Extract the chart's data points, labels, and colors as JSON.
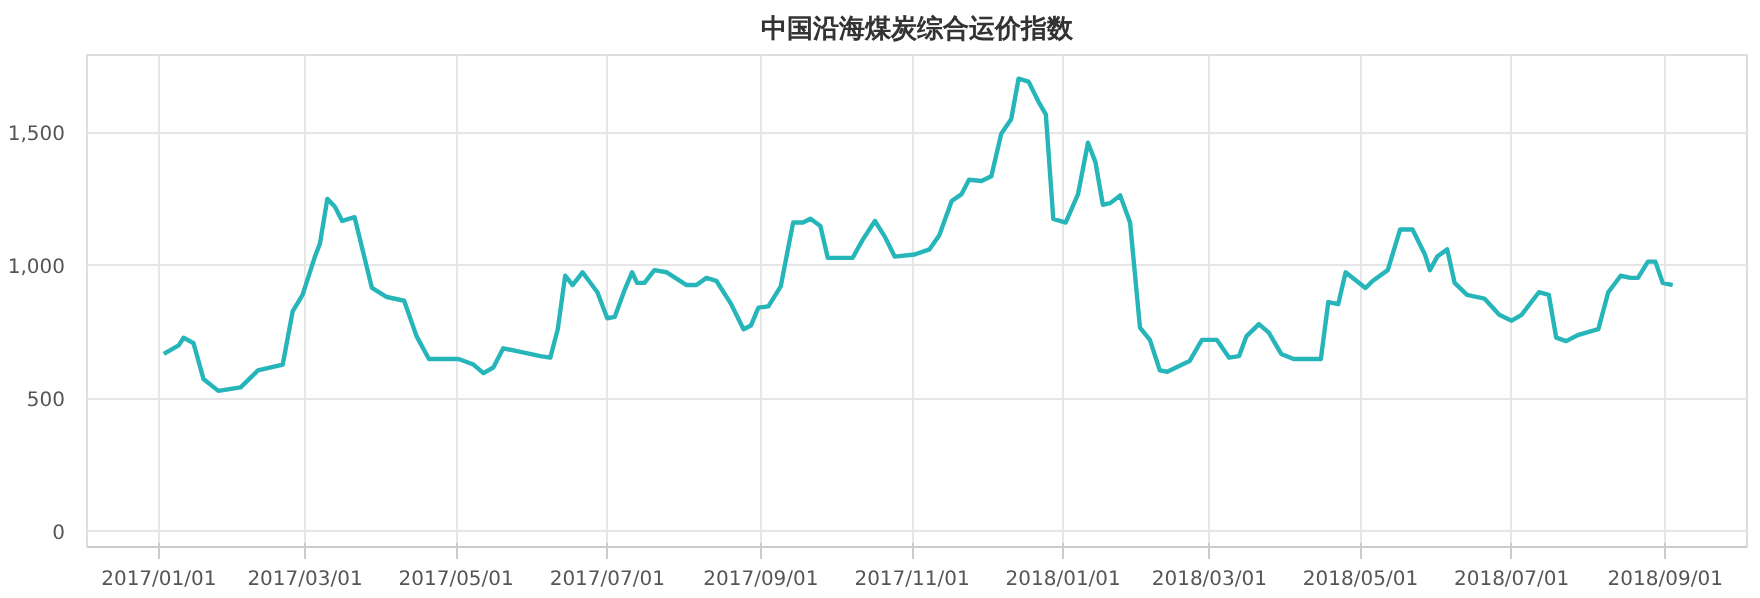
{
  "chart_data": {
    "type": "line",
    "title": "中国沿海煤炭综合运价指数",
    "x": [
      "2017-01-03",
      "2017-01-09",
      "2017-01-11",
      "2017-01-15",
      "2017-01-19",
      "2017-01-25",
      "2017-02-03",
      "2017-02-10",
      "2017-02-20",
      "2017-02-24",
      "2017-02-28",
      "2017-03-05",
      "2017-03-07",
      "2017-03-10",
      "2017-03-13",
      "2017-03-16",
      "2017-03-21",
      "2017-03-28",
      "2017-04-03",
      "2017-04-10",
      "2017-04-15",
      "2017-04-20",
      "2017-05-02",
      "2017-05-08",
      "2017-05-12",
      "2017-05-16",
      "2017-05-20",
      "2017-05-27",
      "2017-06-04",
      "2017-06-08",
      "2017-06-11",
      "2017-06-14",
      "2017-06-17",
      "2017-06-21",
      "2017-06-27",
      "2017-07-01",
      "2017-07-04",
      "2017-07-08",
      "2017-07-11",
      "2017-07-13",
      "2017-07-16",
      "2017-07-20",
      "2017-07-25",
      "2017-08-02",
      "2017-08-06",
      "2017-08-10",
      "2017-08-14",
      "2017-08-20",
      "2017-08-25",
      "2017-08-28",
      "2017-08-31",
      "2017-09-04",
      "2017-09-09",
      "2017-09-14",
      "2017-09-18",
      "2017-09-21",
      "2017-09-25",
      "2017-09-28",
      "2017-10-08",
      "2017-10-12",
      "2017-10-17",
      "2017-10-21",
      "2017-10-25",
      "2017-11-02",
      "2017-11-08",
      "2017-11-12",
      "2017-11-17",
      "2017-11-21",
      "2017-11-24",
      "2017-11-29",
      "2017-12-03",
      "2017-12-07",
      "2017-12-11",
      "2017-12-14",
      "2017-12-18",
      "2017-12-22",
      "2017-12-25",
      "2017-12-28",
      "2018-01-02",
      "2018-01-07",
      "2018-01-11",
      "2018-01-14",
      "2018-01-17",
      "2018-01-20",
      "2018-01-24",
      "2018-01-28",
      "2018-02-01",
      "2018-02-05",
      "2018-02-09",
      "2018-02-12",
      "2018-02-21",
      "2018-02-26",
      "2018-03-04",
      "2018-03-09",
      "2018-03-13",
      "2018-03-16",
      "2018-03-21",
      "2018-03-25",
      "2018-03-30",
      "2018-04-04",
      "2018-04-15",
      "2018-04-18",
      "2018-04-22",
      "2018-04-25",
      "2018-05-03",
      "2018-05-06",
      "2018-05-12",
      "2018-05-17",
      "2018-05-22",
      "2018-05-27",
      "2018-05-29",
      "2018-06-01",
      "2018-06-05",
      "2018-06-08",
      "2018-06-13",
      "2018-06-20",
      "2018-06-26",
      "2018-07-01",
      "2018-07-05",
      "2018-07-12",
      "2018-07-16",
      "2018-07-19",
      "2018-07-23",
      "2018-07-28",
      "2018-08-05",
      "2018-08-09",
      "2018-08-14",
      "2018-08-18",
      "2018-08-21",
      "2018-08-25",
      "2018-08-28",
      "2018-08-31",
      "2018-09-04"
    ],
    "series": [
      {
        "color": "#26b5b9",
        "values": [
          666,
          698,
          727,
          706,
          572,
          527,
          540,
          604,
          626,
          826,
          888,
          1032,
          1080,
          1249,
          1220,
          1166,
          1180,
          914,
          880,
          866,
          733,
          647,
          647,
          626,
          594,
          615,
          687,
          674,
          658,
          652,
          759,
          960,
          925,
          973,
          898,
          800,
          805,
          907,
          973,
          933,
          933,
          981,
          973,
          925,
          925,
          952,
          941,
          853,
          759,
          773,
          840,
          845,
          920,
          1160,
          1160,
          1174,
          1147,
          1027,
          1027,
          1094,
          1166,
          1107,
          1032,
          1040,
          1059,
          1112,
          1241,
          1267,
          1321,
          1316,
          1334,
          1494,
          1548,
          1701,
          1690,
          1615,
          1567,
          1174,
          1160,
          1267,
          1460,
          1388,
          1227,
          1233,
          1262,
          1160,
          765,
          719,
          604,
          599,
          639,
          719,
          719,
          652,
          658,
          733,
          778,
          746,
          666,
          647,
          647,
          861,
          853,
          973,
          914,
          941,
          981,
          1134,
          1134,
          1040,
          981,
          1032,
          1059,
          933,
          888,
          874,
          813,
          791,
          813,
          898,
          888,
          727,
          714,
          738,
          759,
          898,
          960,
          952,
          952,
          1013,
          1013,
          933,
          925
        ]
      }
    ],
    "xlim": [
      "2016-12-03",
      "2018-10-04"
    ],
    "xticks": [
      {
        "value": "2017-01-01",
        "label": "2017/01/01"
      },
      {
        "value": "2017-03-01",
        "label": "2017/03/01"
      },
      {
        "value": "2017-05-01",
        "label": "2017/05/01"
      },
      {
        "value": "2017-07-01",
        "label": "2017/07/01"
      },
      {
        "value": "2017-09-01",
        "label": "2017/09/01"
      },
      {
        "value": "2017-11-01",
        "label": "2017/11/01"
      },
      {
        "value": "2018-01-01",
        "label": "2018/01/01"
      },
      {
        "value": "2018-03-01",
        "label": "2018/03/01"
      },
      {
        "value": "2018-05-01",
        "label": "2018/05/01"
      },
      {
        "value": "2018-07-01",
        "label": "2018/07/01"
      },
      {
        "value": "2018-09-01",
        "label": "2018/09/01"
      }
    ],
    "ylim": [
      -60,
      1790
    ],
    "yticks": [
      0,
      500,
      {
        "value": 1000,
        "label": "1,000"
      },
      {
        "value": 1500,
        "label": "1,500"
      }
    ],
    "grid": true,
    "marker": "none",
    "line_style": "solid"
  }
}
